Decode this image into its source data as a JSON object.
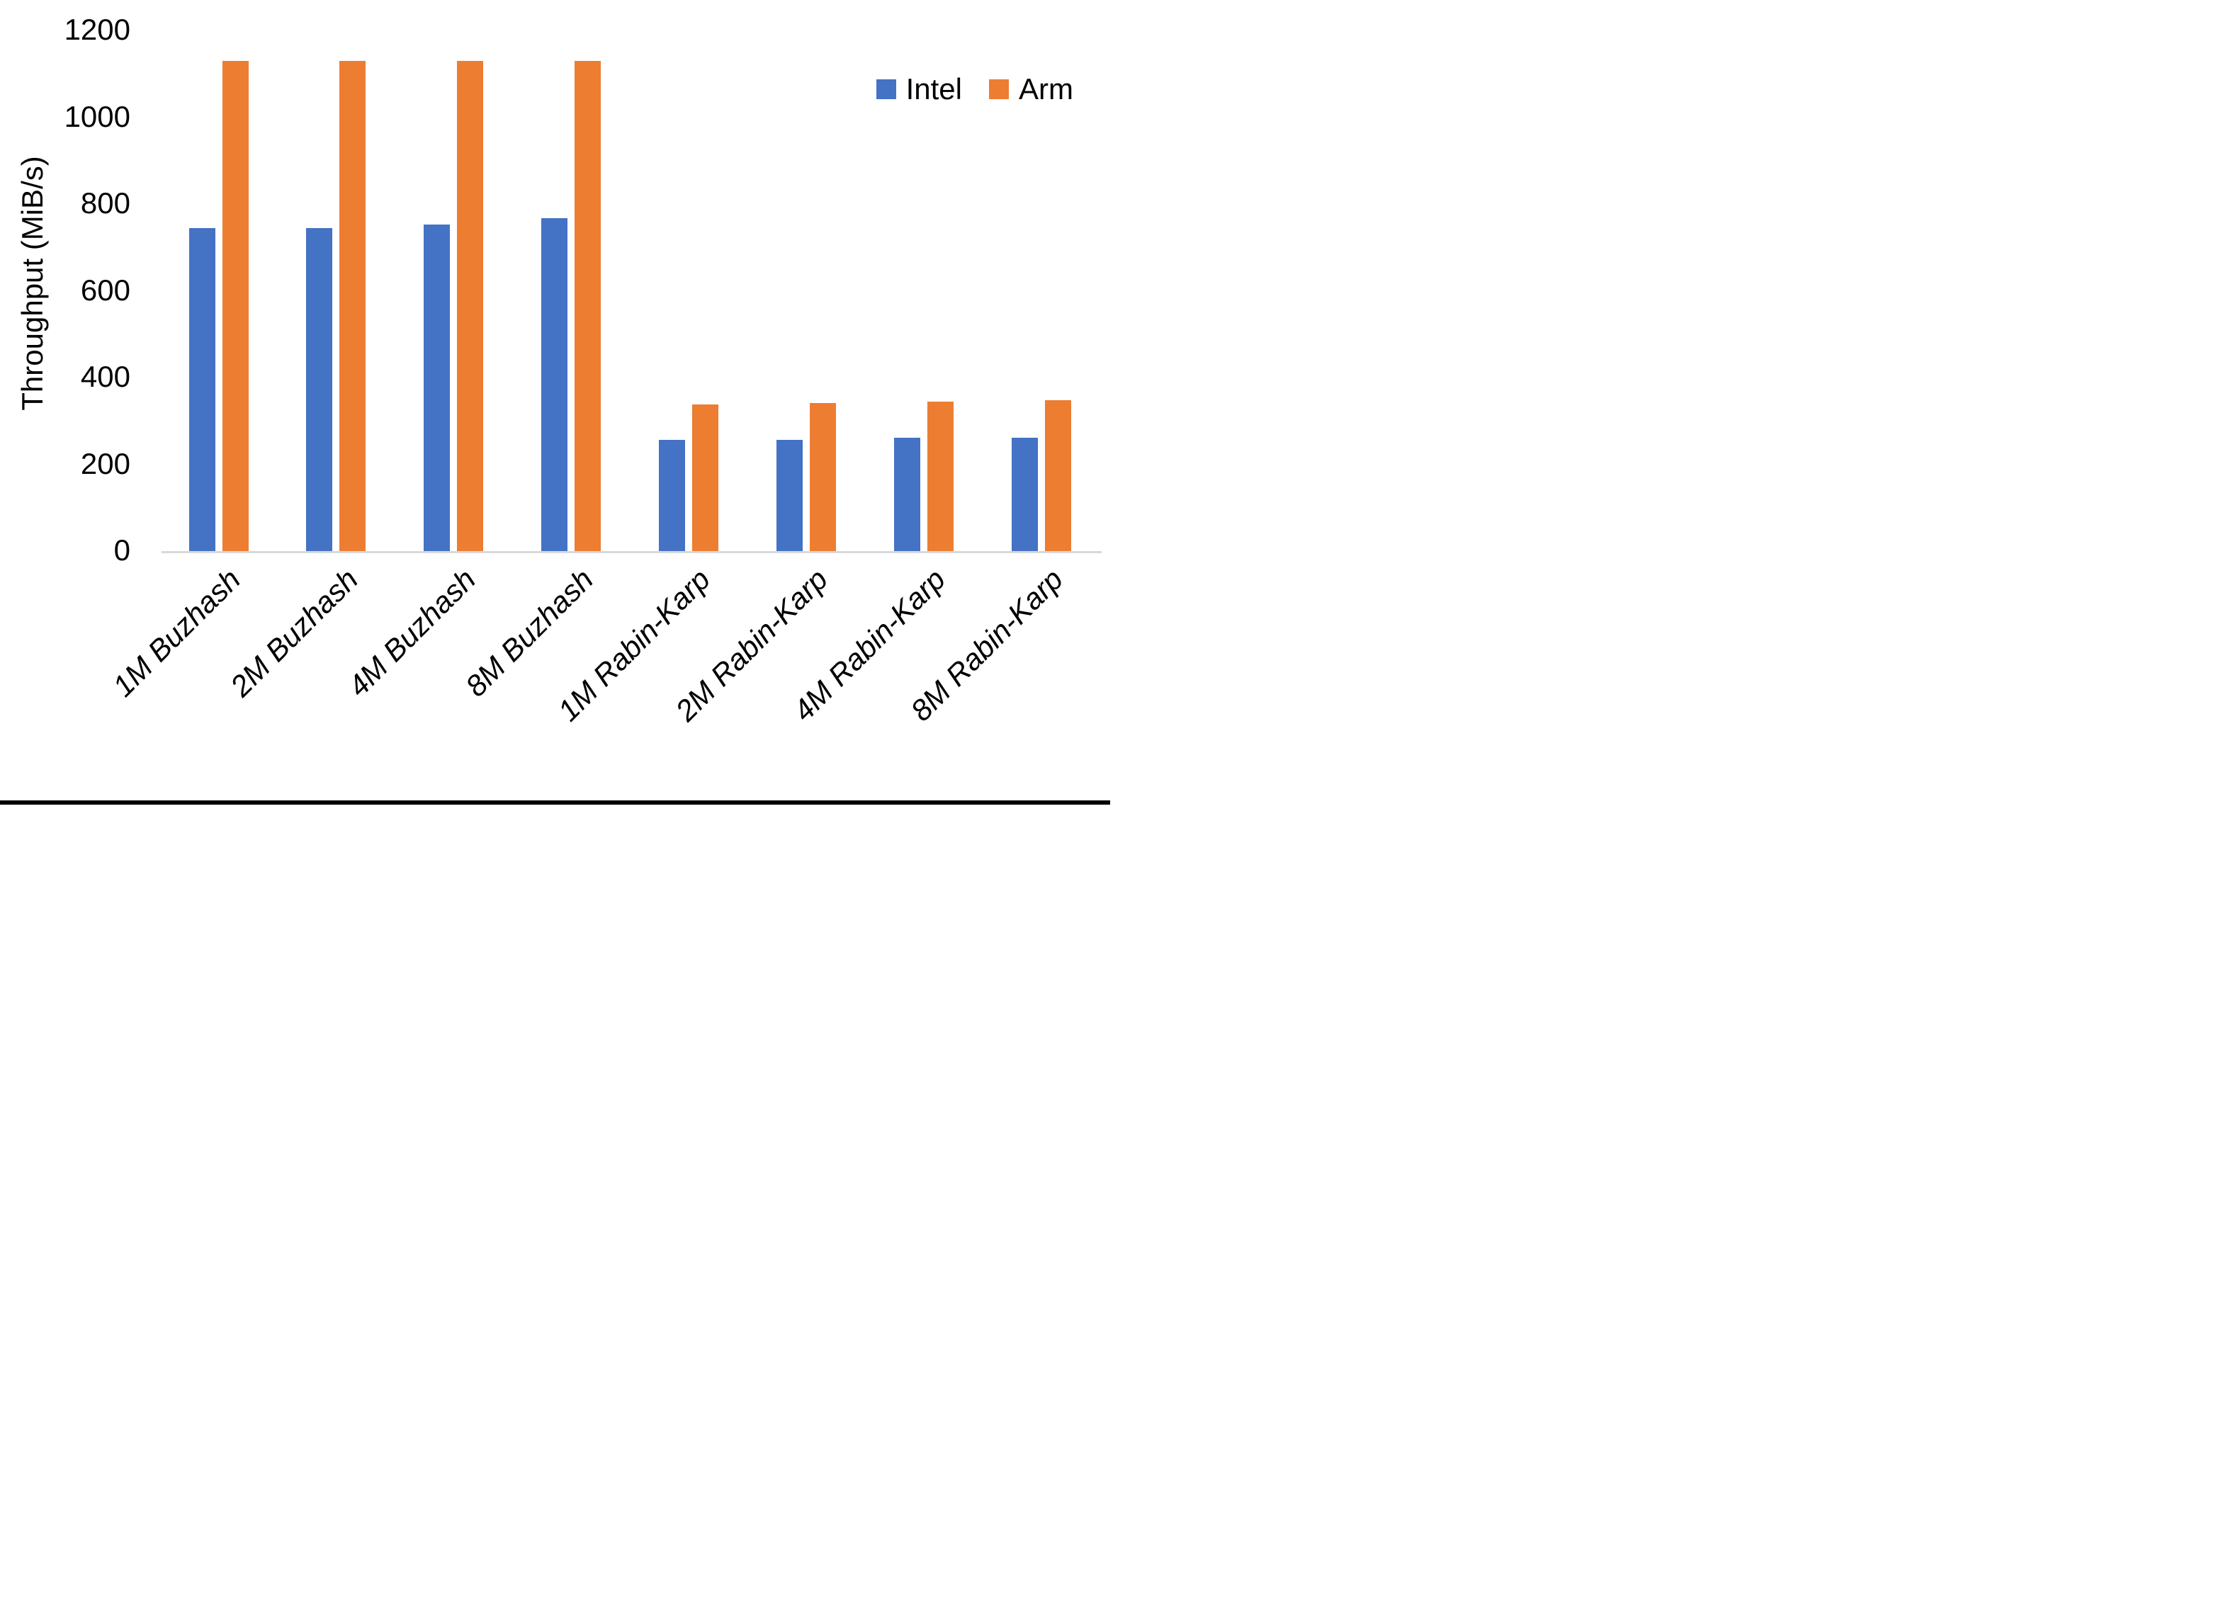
{
  "chart_data": {
    "type": "bar",
    "title": "",
    "xlabel": "",
    "ylabel": "Throughput (MiB/s)",
    "categories": [
      "1M Buzhash",
      "2M Buzhash",
      "4M Buzhash",
      "8M Buzhash",
      "1M Rabin-Karp",
      "2M Rabin-Karp",
      "4M Rabin-Karp",
      "8M Rabin-Karp"
    ],
    "series": [
      {
        "name": "Intel",
        "color": "#4472C4",
        "values": [
          745,
          744,
          753,
          768,
          256,
          257,
          261,
          261
        ]
      },
      {
        "name": "Arm",
        "color": "#ED7D31",
        "values": [
          1130,
          1130,
          1130,
          1130,
          338,
          341,
          344,
          347
        ]
      }
    ],
    "ylim": [
      0,
      1200
    ],
    "yticks": [
      0,
      200,
      400,
      600,
      800,
      1000,
      1200
    ],
    "grid": false,
    "legend_position": "top-right",
    "axis_line_color": "#D9D9D9",
    "background_color": "#FFFFFF",
    "bottom_border_color": "#000000"
  }
}
